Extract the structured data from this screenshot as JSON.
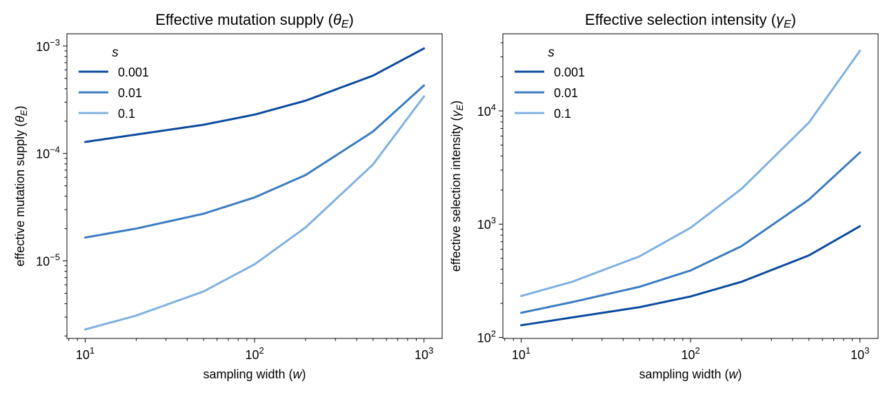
{
  "chart_data": [
    {
      "type": "line",
      "title": "Effective mutation supply (θE)",
      "title_parts": [
        "Effective mutation supply (",
        "θ",
        "E",
        ")"
      ],
      "xlabel_parts": [
        "sampling width (",
        "w",
        ")"
      ],
      "ylabel_parts": [
        "effective mutation supply (",
        "θ",
        "E",
        ")"
      ],
      "xscale": "log",
      "yscale": "log",
      "xlim": [
        7.8,
        1280
      ],
      "ylim": [
        1.9e-06,
        0.0013
      ],
      "xticks": [
        {
          "value": 10,
          "base": "10",
          "exp": "1"
        },
        {
          "value": 100,
          "base": "10",
          "exp": "2"
        },
        {
          "value": 1000,
          "base": "10",
          "exp": "3"
        }
      ],
      "yticks": [
        {
          "value": 1e-05,
          "base": "10",
          "exp": "−5"
        },
        {
          "value": 0.0001,
          "base": "10",
          "exp": "−4"
        },
        {
          "value": 0.001,
          "base": "10",
          "exp": "−3"
        }
      ],
      "legend": {
        "title": "s",
        "placement": "top-left"
      },
      "x": [
        10,
        20,
        50,
        100,
        200,
        500,
        1000
      ],
      "series": [
        {
          "name": "0.001",
          "color": "#0a4a9e",
          "values": [
            0.000128,
            0.00015,
            0.000185,
            0.00023,
            0.00031,
            0.00053,
            0.00095
          ]
        },
        {
          "name": "0.01",
          "color": "#3a7bc0",
          "values": [
            1.65e-05,
            2e-05,
            2.75e-05,
            3.9e-05,
            6.3e-05,
            0.00016,
            0.00043
          ]
        },
        {
          "name": "0.1",
          "color": "#7fb0e0",
          "values": [
            2.3e-06,
            3.1e-06,
            5.2e-06,
            9.3e-06,
            2.05e-05,
            7.9e-05,
            0.00034
          ]
        }
      ]
    },
    {
      "type": "line",
      "title": "Effective selection intensity (γE)",
      "title_parts": [
        "Effective selection intensity (",
        "γ",
        "E",
        ")"
      ],
      "xlabel_parts": [
        "sampling width (",
        "w",
        ")"
      ],
      "ylabel_parts": [
        "effective selection intensity (",
        "γ",
        "E",
        ")"
      ],
      "xscale": "log",
      "yscale": "log",
      "xlim": [
        7.8,
        1280
      ],
      "ylim": [
        98,
        48000
      ],
      "xticks": [
        {
          "value": 10,
          "base": "10",
          "exp": "1"
        },
        {
          "value": 100,
          "base": "10",
          "exp": "2"
        },
        {
          "value": 1000,
          "base": "10",
          "exp": "3"
        }
      ],
      "yticks": [
        {
          "value": 100,
          "base": "10",
          "exp": "2"
        },
        {
          "value": 1000,
          "base": "10",
          "exp": "3"
        },
        {
          "value": 10000,
          "base": "10",
          "exp": "4"
        }
      ],
      "legend": {
        "title": "s",
        "placement": "top-left"
      },
      "x": [
        10,
        20,
        50,
        100,
        200,
        500,
        1000
      ],
      "series": [
        {
          "name": "0.001",
          "color": "#0a4a9e",
          "values": [
            128,
            150,
            185,
            230,
            310,
            530,
            960
          ]
        },
        {
          "name": "0.01",
          "color": "#3a7bc0",
          "values": [
            165,
            205,
            280,
            390,
            640,
            1650,
            4300
          ]
        },
        {
          "name": "0.1",
          "color": "#7fb0e0",
          "values": [
            232,
            310,
            520,
            930,
            2050,
            7900,
            34000
          ]
        }
      ]
    }
  ]
}
